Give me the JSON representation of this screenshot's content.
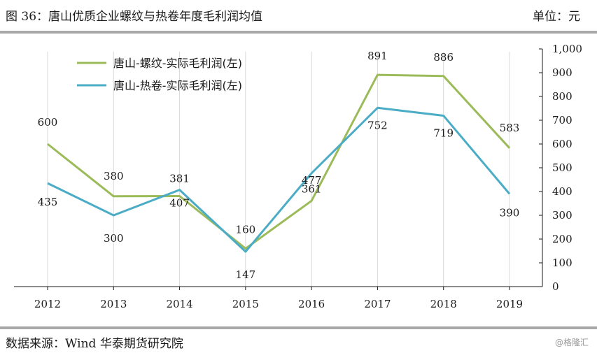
{
  "header": {
    "title": "图 36：唐山优质企业螺纹与热卷年度毛利润均值",
    "unit": "单位：元"
  },
  "footer": {
    "source": "数据来源：Wind 华泰期货研究院",
    "watermark": "@格隆汇"
  },
  "colors": {
    "rebar": "#9bbb59",
    "hotcoil": "#4bacc6",
    "rule": "#a9a9a9",
    "axis": "#1a1a1a",
    "droplines": "#d9d9d9"
  },
  "chart_data": {
    "type": "line",
    "categories": [
      "2012",
      "2013",
      "2014",
      "2015",
      "2016",
      "2017",
      "2018",
      "2019"
    ],
    "series": [
      {
        "name": "唐山-螺纹-实际毛利润(左)",
        "values": [
          600,
          380,
          381,
          160,
          361,
          891,
          886,
          583
        ]
      },
      {
        "name": "唐山-热卷-实际毛利润(左)",
        "values": [
          435,
          300,
          407,
          147,
          477,
          752,
          719,
          390
        ]
      }
    ],
    "ylim": [
      0,
      1000
    ],
    "yticks": [
      "0",
      "100",
      "200",
      "300",
      "400",
      "500",
      "600",
      "700",
      "800",
      "900",
      "1,000"
    ],
    "y_axis_side": "right",
    "grid": false,
    "legend": "top-left",
    "data_labels": {
      "rebar": [
        "600",
        "380",
        "381",
        "160",
        "361",
        "891",
        "886",
        "583"
      ],
      "hotcoil": [
        "435",
        "300",
        "407",
        "147",
        "477",
        "752",
        "719",
        "390"
      ]
    }
  }
}
